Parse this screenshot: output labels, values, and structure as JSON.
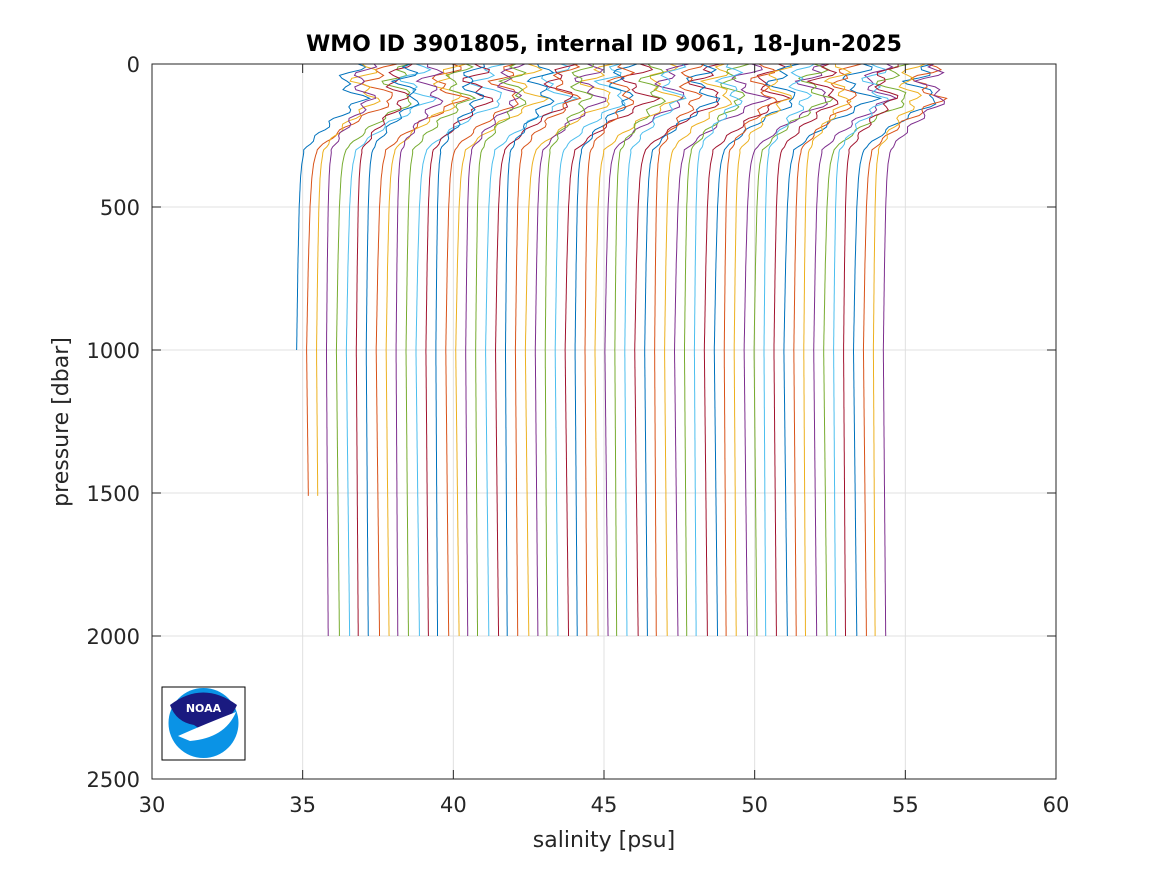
{
  "chart_data": {
    "type": "line",
    "title": "WMO ID 3901805, internal ID 9061, 18-Jun-2025",
    "xlabel": "salinity [psu]",
    "ylabel": "pressure [dbar]",
    "xlim": [
      30,
      60
    ],
    "ylim": [
      0,
      2500
    ],
    "y_reversed": true,
    "grid": true,
    "legend": "none",
    "xticks": [
      "30",
      "35",
      "40",
      "45",
      "50",
      "55",
      "60"
    ],
    "yticks": [
      "0",
      "500",
      "1000",
      "1500",
      "2000",
      "2500"
    ],
    "series_colors": [
      "#0072bd",
      "#d95319",
      "#edb120",
      "#7e2f8e",
      "#77ac30",
      "#4dbeee",
      "#a2142f"
    ],
    "profiles": {
      "count": 60,
      "first_offset": 34.8,
      "offset_step": 0.33,
      "deep_pressure": 2000,
      "first_profile_max_pressure": 1000,
      "second_third_max_pressure": 1510,
      "shape_pressure": [
        0,
        30,
        60,
        90,
        120,
        150,
        200,
        250,
        300,
        350,
        400,
        500,
        700,
        1000,
        1500,
        2000
      ],
      "shape_salinity_anomaly": [
        2.4,
        2.2,
        1.7,
        2.1,
        2.6,
        2.2,
        1.4,
        0.8,
        0.3,
        0.2,
        0.15,
        0.1,
        0.05,
        0.0,
        0.05,
        0.1
      ]
    }
  },
  "logo": {
    "name": "NOAA",
    "text": "NOAA"
  }
}
